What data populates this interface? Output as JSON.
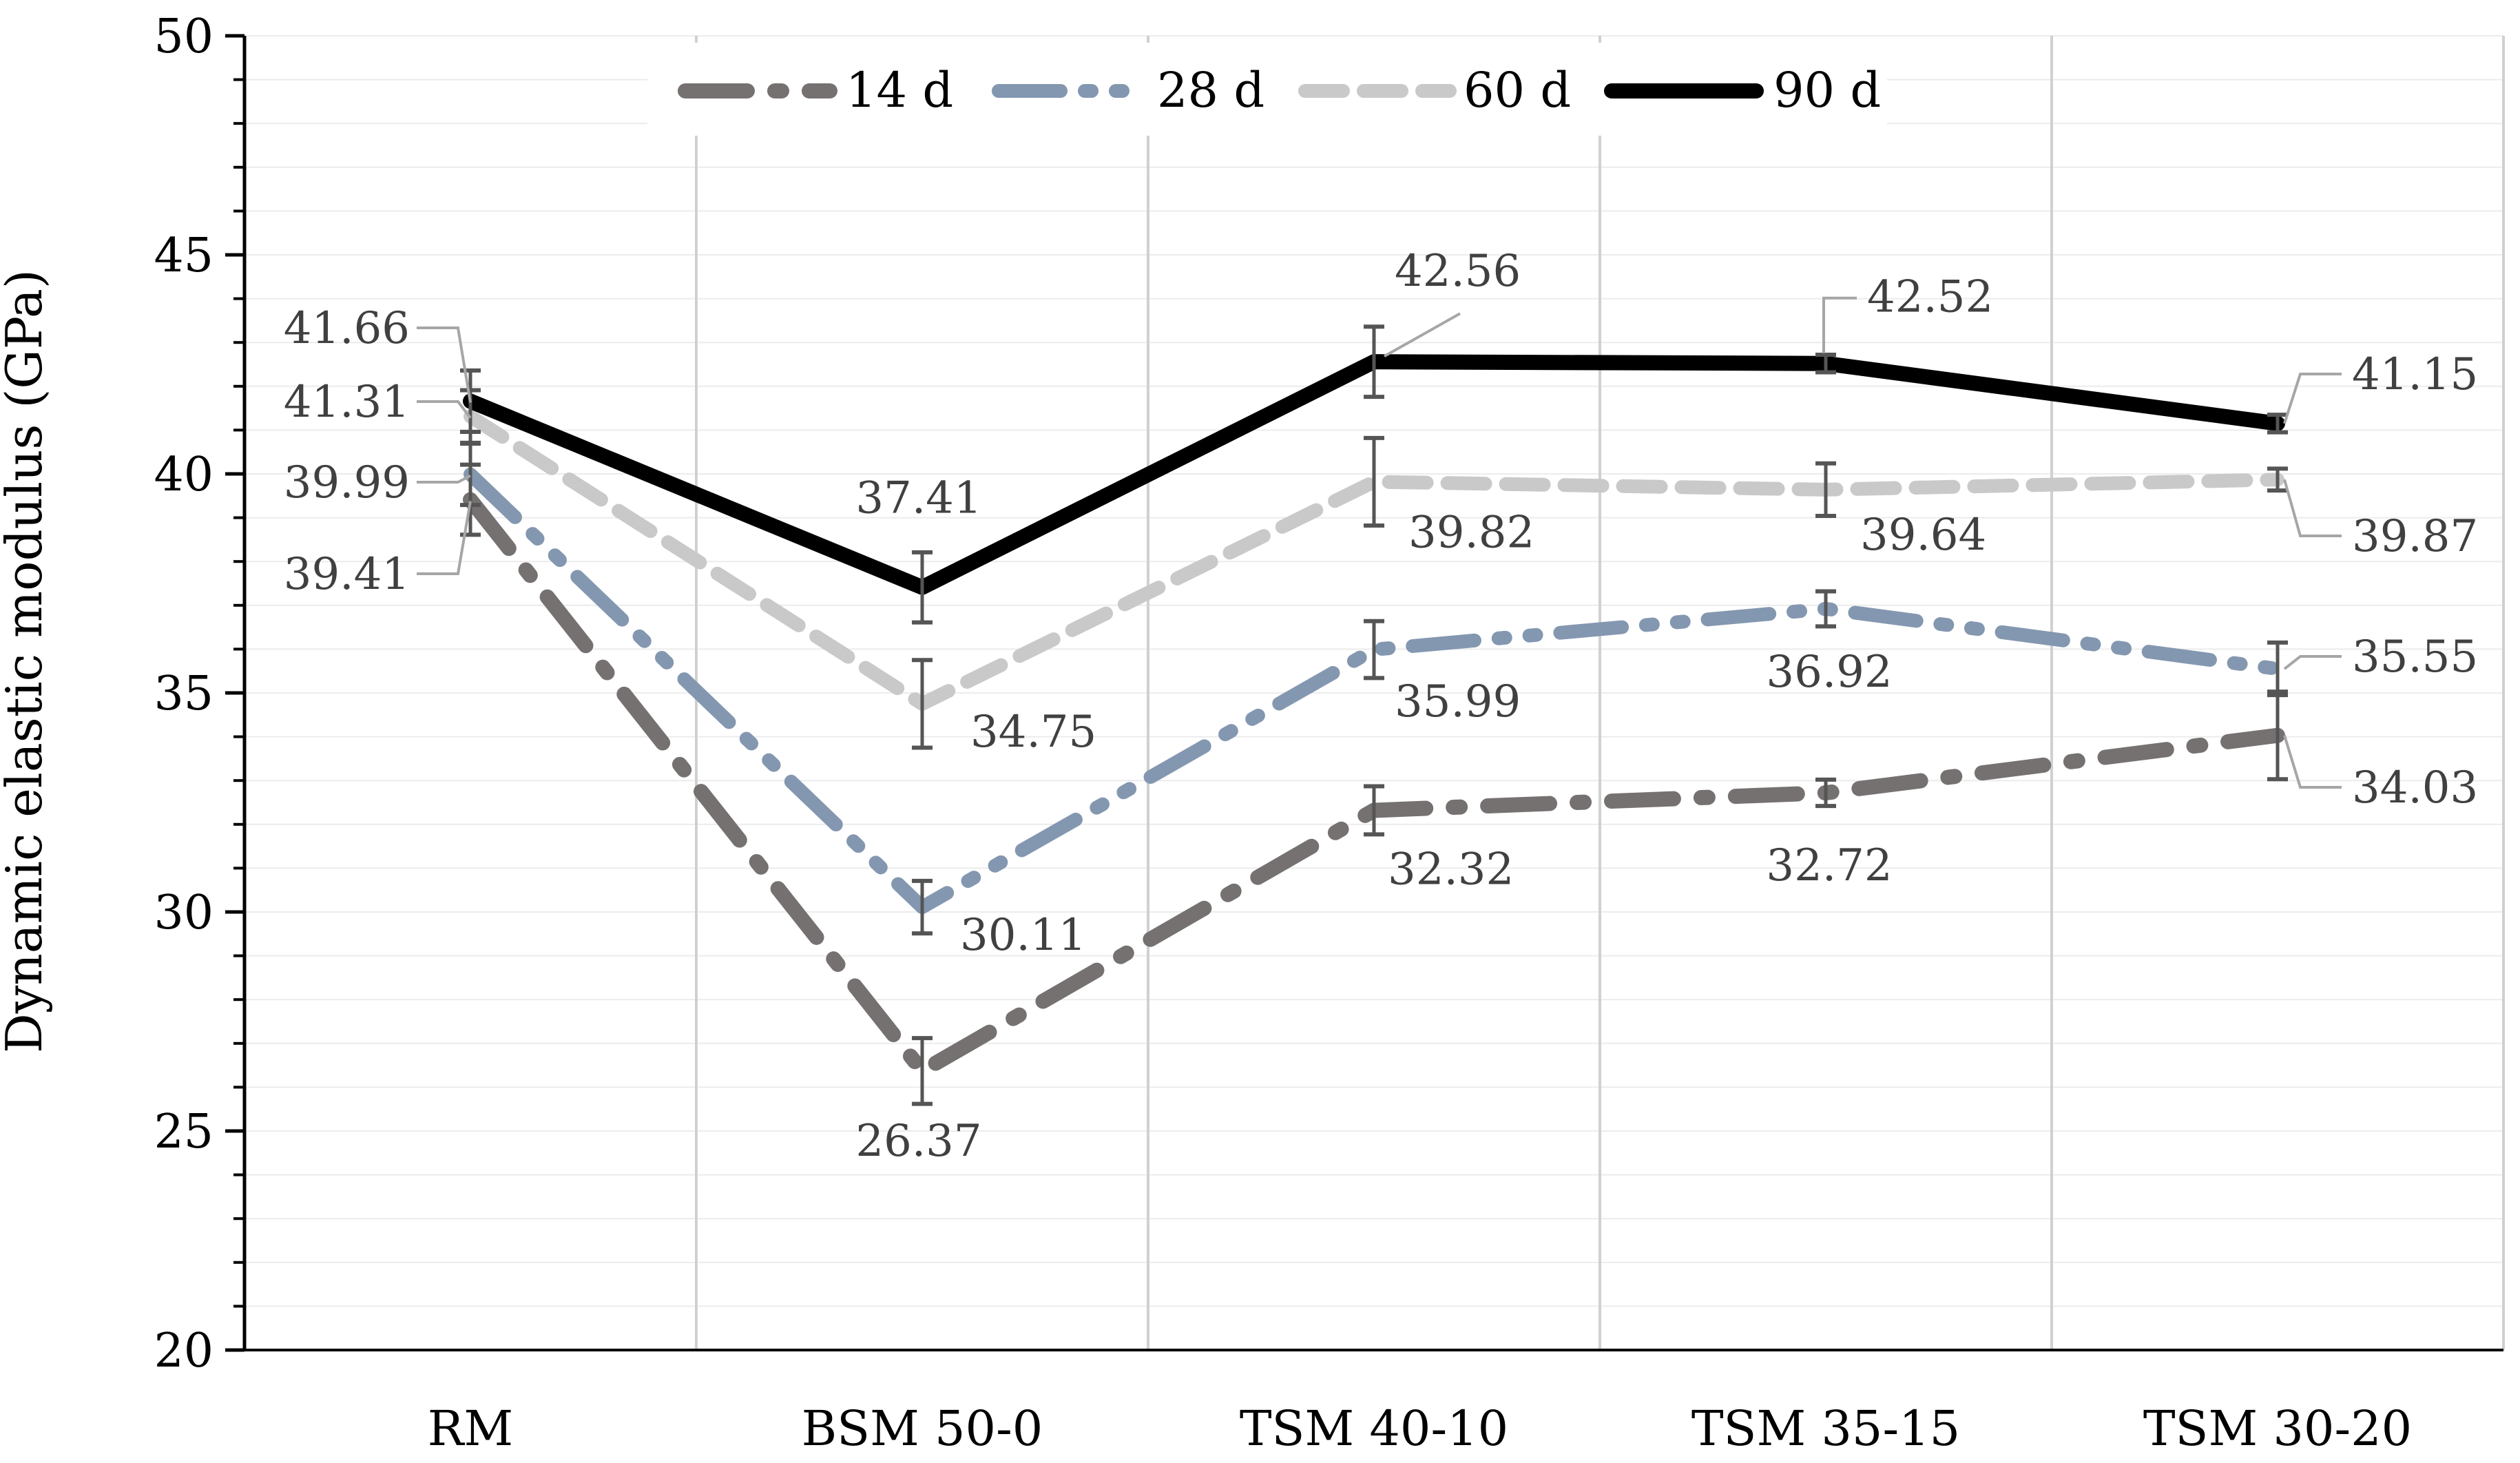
{
  "chart_data": {
    "type": "line",
    "title": "",
    "xlabel": "",
    "ylabel": "Dynamic elastic modulus (GPa)",
    "ylim": [
      20,
      50
    ],
    "ytick_values": [
      20,
      25,
      30,
      35,
      40,
      45,
      50
    ],
    "categories": [
      "RM",
      "BSM 50-0",
      "TSM 40-10",
      "TSM 35-15",
      "TSM 30-20"
    ],
    "legend_position": "top",
    "series": [
      {
        "name": "14 d",
        "color": "#767171",
        "style": "long-dash-dot",
        "values": [
          39.41,
          26.37,
          32.32,
          32.72,
          34.03
        ],
        "error": [
          0.8,
          0.75,
          0.55,
          0.3,
          1.0
        ],
        "labels": [
          "39.41",
          "26.37",
          "32.32",
          "32.72",
          "34.03"
        ]
      },
      {
        "name": "28 d",
        "color": "#8497b0",
        "style": "long-dash-dot-dot",
        "values": [
          39.99,
          30.11,
          35.99,
          36.92,
          35.55
        ],
        "error": [
          0.7,
          0.6,
          0.65,
          0.4,
          0.6
        ],
        "labels": [
          "39.99",
          "30.11",
          "35.99",
          "36.92",
          "35.55"
        ]
      },
      {
        "name": "60 d",
        "color": "#c9c9c9",
        "style": "dash",
        "values": [
          41.31,
          34.75,
          39.82,
          39.64,
          39.87
        ],
        "error": [
          0.6,
          1.0,
          1.0,
          0.6,
          0.25
        ],
        "labels": [
          "41.31",
          "34.75",
          "39.82",
          "39.64",
          "39.87"
        ]
      },
      {
        "name": "90 d",
        "color": "#000000",
        "style": "solid",
        "values": [
          41.66,
          37.41,
          42.56,
          42.52,
          41.15
        ],
        "error": [
          0.7,
          0.8,
          0.8,
          0.2,
          0.2
        ],
        "labels": [
          "41.66",
          "37.41",
          "42.56",
          "42.52",
          "41.15"
        ]
      }
    ]
  }
}
